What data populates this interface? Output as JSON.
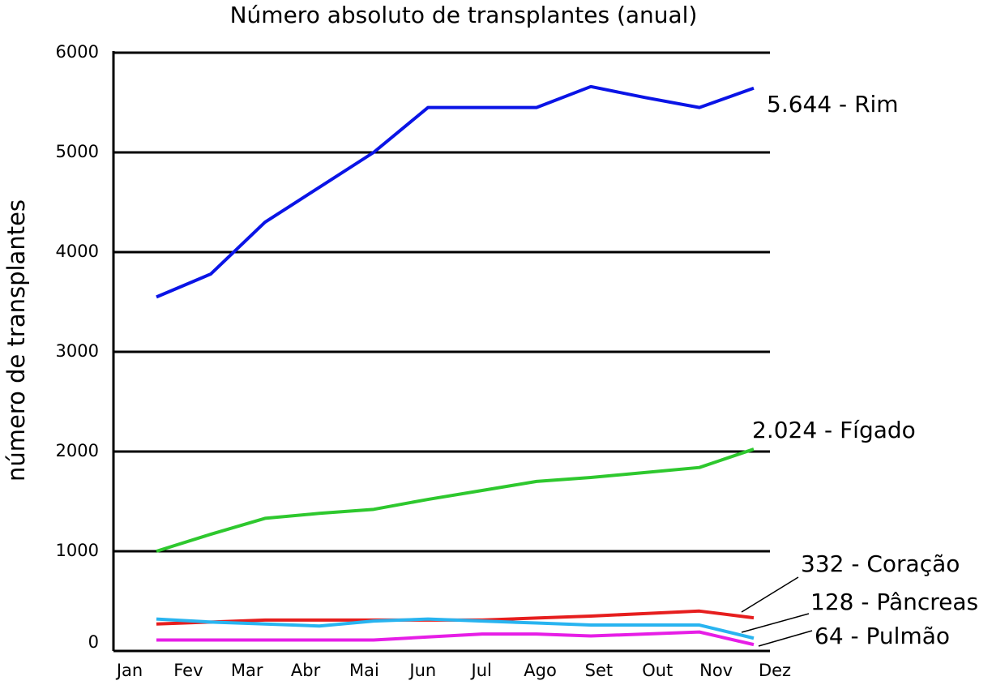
{
  "chart_data": {
    "type": "line",
    "title": "Número absoluto de transplantes (anual)",
    "y_label": "número de transplantes",
    "categories": [
      "Jan",
      "Fev",
      "Mar",
      "Abr",
      "Mai",
      "Jun",
      "Jul",
      "Ago",
      "Set",
      "Out",
      "Nov",
      "Dez"
    ],
    "ylim": [
      0,
      6000
    ],
    "yticks": [
      0,
      1000,
      2000,
      3000,
      4000,
      5000,
      6000
    ],
    "grid": true,
    "series": [
      {
        "name": "5.644 - Rim",
        "color": "#0a14e6",
        "values": [
          3550,
          3780,
          4300,
          4650,
          5000,
          5450,
          5450,
          5450,
          5660,
          5550,
          5450,
          5644
        ]
      },
      {
        "name": "2.024 - Fígado",
        "color": "#2ec82e",
        "values": [
          1000,
          1170,
          1330,
          1380,
          1420,
          1520,
          1610,
          1700,
          1740,
          1790,
          1840,
          2024
        ]
      },
      {
        "name": "332 - Coração",
        "color": "#e61e1e",
        "values": [
          270,
          290,
          310,
          310,
          310,
          310,
          310,
          330,
          350,
          375,
          400,
          332
        ]
      },
      {
        "name": "128 - Pâncreas",
        "color": "#28b4f0",
        "values": [
          320,
          290,
          270,
          250,
          300,
          320,
          300,
          280,
          260,
          260,
          260,
          128
        ]
      },
      {
        "name": "64 - Pulmão",
        "color": "#e61ee6",
        "values": [
          110,
          110,
          110,
          110,
          110,
          140,
          170,
          170,
          150,
          170,
          190,
          64
        ]
      }
    ]
  }
}
